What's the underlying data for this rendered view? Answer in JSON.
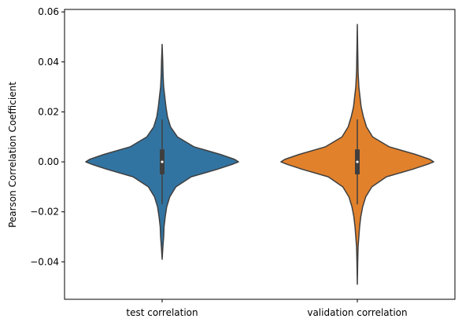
{
  "chart_data": {
    "type": "violin",
    "title": "",
    "xlabel": "",
    "ylabel": "Pearson Correlation Coefficient",
    "categories": [
      "test correlation",
      "validation correlation"
    ],
    "ylim": [
      -0.055,
      0.061
    ],
    "yticks": [
      -0.04,
      -0.02,
      0.0,
      0.02,
      0.04,
      0.06
    ],
    "ytick_labels": [
      "−0.04",
      "−0.02",
      "0.00",
      "0.02",
      "0.04",
      "0.06"
    ],
    "grid": false,
    "series": [
      {
        "category": "test correlation",
        "color": "#3274a1",
        "min": -0.039,
        "q1": -0.005,
        "median": 0.0,
        "q3": 0.005,
        "max": 0.047,
        "whisker_low": -0.017,
        "whisker_high": 0.017,
        "density_profile": [
          [
            -0.039,
            0.0
          ],
          [
            -0.034,
            0.01
          ],
          [
            -0.03,
            0.02
          ],
          [
            -0.026,
            0.025
          ],
          [
            -0.022,
            0.04
          ],
          [
            -0.018,
            0.06
          ],
          [
            -0.014,
            0.1
          ],
          [
            -0.01,
            0.18
          ],
          [
            -0.006,
            0.38
          ],
          [
            -0.003,
            0.72
          ],
          [
            -0.001,
            0.92
          ],
          [
            0.0,
            1.0
          ],
          [
            0.001,
            0.95
          ],
          [
            0.003,
            0.76
          ],
          [
            0.006,
            0.42
          ],
          [
            0.01,
            0.2
          ],
          [
            0.014,
            0.11
          ],
          [
            0.018,
            0.07
          ],
          [
            0.022,
            0.05
          ],
          [
            0.026,
            0.035
          ],
          [
            0.03,
            0.02
          ],
          [
            0.035,
            0.012
          ],
          [
            0.04,
            0.008
          ],
          [
            0.047,
            0.0
          ]
        ]
      },
      {
        "category": "validation correlation",
        "color": "#e1812c",
        "min": -0.049,
        "q1": -0.005,
        "median": 0.0,
        "q3": 0.005,
        "max": 0.055,
        "whisker_low": -0.017,
        "whisker_high": 0.017,
        "density_profile": [
          [
            -0.049,
            0.0
          ],
          [
            -0.04,
            0.005
          ],
          [
            -0.034,
            0.01
          ],
          [
            -0.03,
            0.02
          ],
          [
            -0.026,
            0.03
          ],
          [
            -0.022,
            0.045
          ],
          [
            -0.018,
            0.07
          ],
          [
            -0.014,
            0.11
          ],
          [
            -0.01,
            0.19
          ],
          [
            -0.006,
            0.38
          ],
          [
            -0.003,
            0.72
          ],
          [
            -0.001,
            0.92
          ],
          [
            0.0,
            1.0
          ],
          [
            0.001,
            0.95
          ],
          [
            0.003,
            0.76
          ],
          [
            0.006,
            0.42
          ],
          [
            0.01,
            0.2
          ],
          [
            0.014,
            0.12
          ],
          [
            0.018,
            0.08
          ],
          [
            0.022,
            0.05
          ],
          [
            0.026,
            0.035
          ],
          [
            0.03,
            0.02
          ],
          [
            0.036,
            0.01
          ],
          [
            0.045,
            0.005
          ],
          [
            0.055,
            0.0
          ]
        ]
      }
    ]
  }
}
